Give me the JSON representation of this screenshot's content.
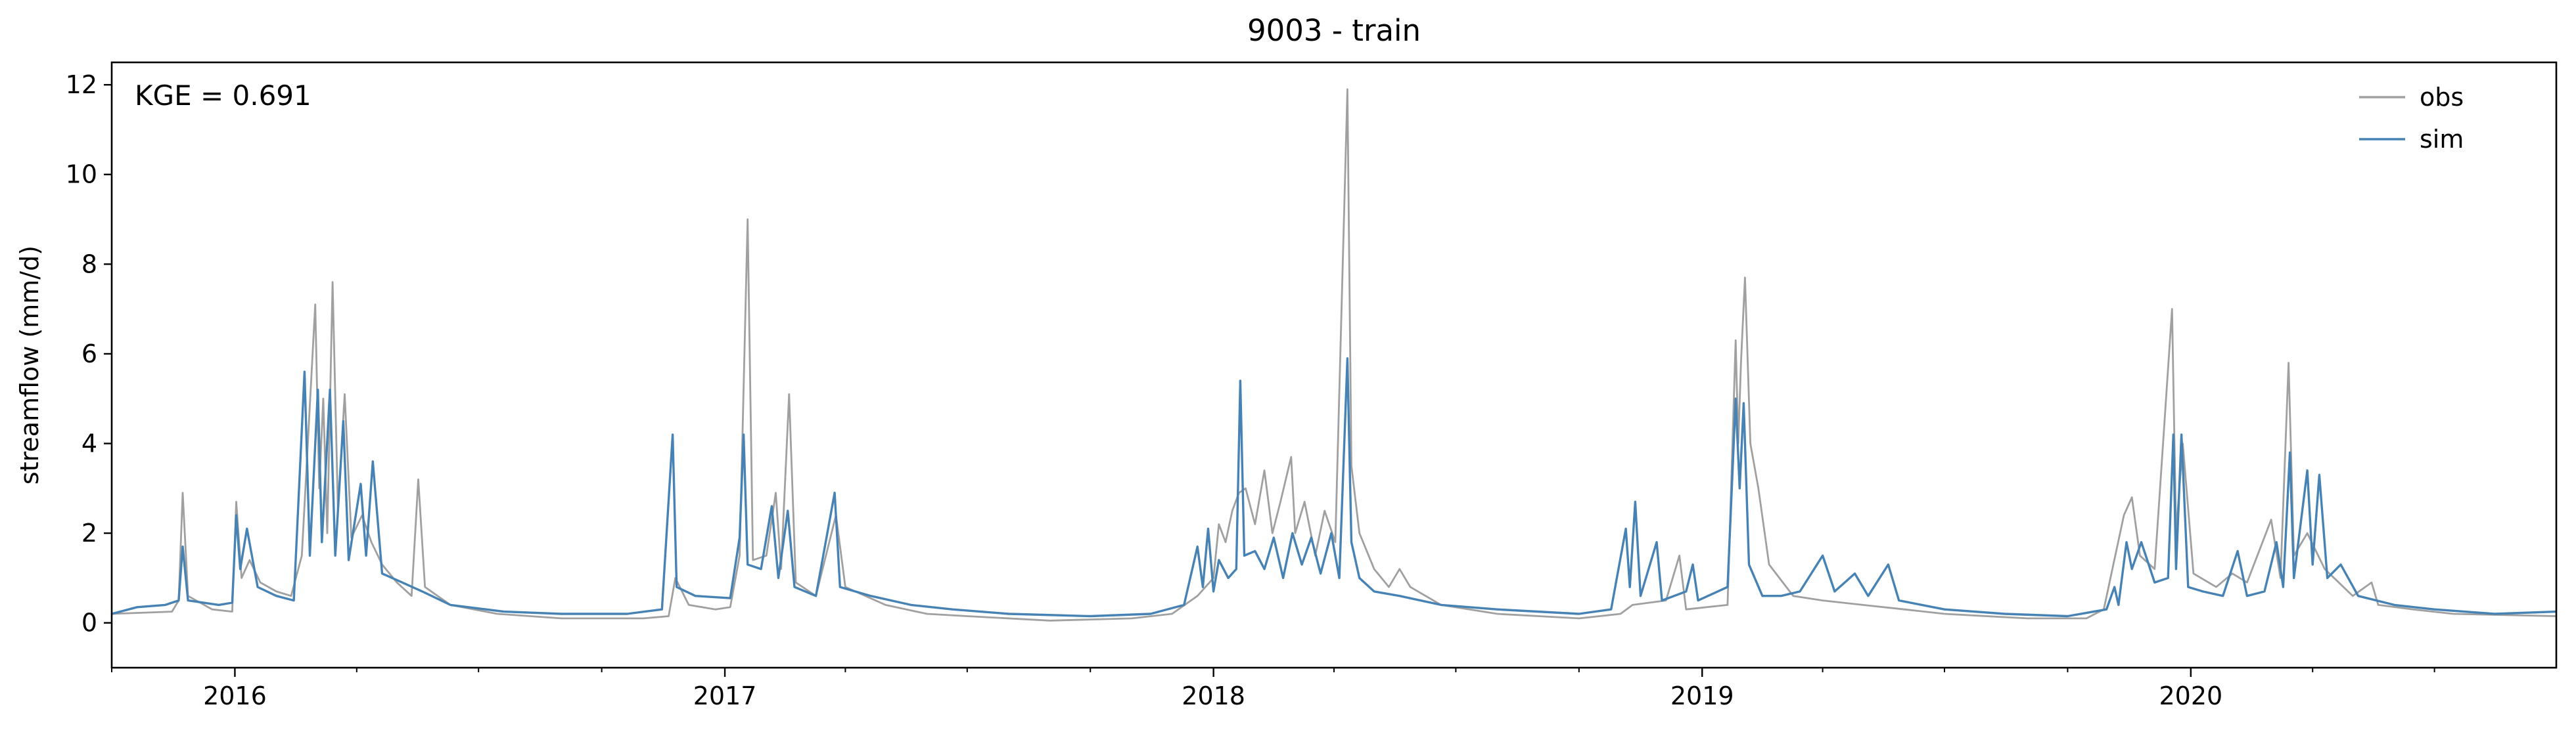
{
  "chart_data": {
    "type": "line",
    "title": "9003 - train",
    "xlabel": "",
    "ylabel": "streamflow (mm/d)",
    "xlim": [
      "2015-10-01",
      "2020-09-30"
    ],
    "ylim": [
      -1,
      12.5
    ],
    "x_ticks": [
      "2016-01-01",
      "2017-01-01",
      "2018-01-01",
      "2019-01-01",
      "2020-01-01"
    ],
    "x_tick_labels": [
      "2016",
      "2017",
      "2018",
      "2019",
      "2020"
    ],
    "y_ticks": [
      0,
      2,
      4,
      6,
      8,
      10,
      12
    ],
    "y_tick_labels": [
      "0",
      "2",
      "4",
      "6",
      "8",
      "10",
      "12"
    ],
    "grid": false,
    "legend_position": "top-right",
    "annotation": "KGE = 0.691",
    "series": [
      {
        "name": "obs",
        "color": "#a0a0a0",
        "points": [
          [
            "2015-10-01",
            0.2
          ],
          [
            "2015-11-15",
            0.25
          ],
          [
            "2015-11-20",
            0.5
          ],
          [
            "2015-11-23",
            2.9
          ],
          [
            "2015-11-27",
            0.6
          ],
          [
            "2015-12-15",
            0.3
          ],
          [
            "2015-12-30",
            0.25
          ],
          [
            "2016-01-02",
            2.7
          ],
          [
            "2016-01-06",
            1.0
          ],
          [
            "2016-01-12",
            1.4
          ],
          [
            "2016-01-20",
            0.9
          ],
          [
            "2016-02-01",
            0.7
          ],
          [
            "2016-02-12",
            0.6
          ],
          [
            "2016-02-20",
            1.5
          ],
          [
            "2016-03-01",
            7.1
          ],
          [
            "2016-03-04",
            3.0
          ],
          [
            "2016-03-07",
            5.0
          ],
          [
            "2016-03-10",
            2.0
          ],
          [
            "2016-03-14",
            7.6
          ],
          [
            "2016-03-18",
            2.5
          ],
          [
            "2016-03-23",
            5.1
          ],
          [
            "2016-03-28",
            1.9
          ],
          [
            "2016-04-05",
            2.4
          ],
          [
            "2016-04-12",
            1.8
          ],
          [
            "2016-04-20",
            1.3
          ],
          [
            "2016-05-01",
            0.9
          ],
          [
            "2016-05-12",
            0.6
          ],
          [
            "2016-05-17",
            3.2
          ],
          [
            "2016-05-22",
            0.8
          ],
          [
            "2016-06-10",
            0.4
          ],
          [
            "2016-07-15",
            0.2
          ],
          [
            "2016-09-01",
            0.1
          ],
          [
            "2016-11-01",
            0.1
          ],
          [
            "2016-11-20",
            0.15
          ],
          [
            "2016-11-25",
            1.0
          ],
          [
            "2016-12-05",
            0.4
          ],
          [
            "2016-12-25",
            0.3
          ],
          [
            "2017-01-05",
            0.35
          ],
          [
            "2017-01-12",
            1.5
          ],
          [
            "2017-01-18",
            9.0
          ],
          [
            "2017-01-22",
            1.4
          ],
          [
            "2017-02-01",
            1.5
          ],
          [
            "2017-02-08",
            2.9
          ],
          [
            "2017-02-12",
            1.2
          ],
          [
            "2017-02-18",
            5.1
          ],
          [
            "2017-02-23",
            0.9
          ],
          [
            "2017-03-10",
            0.6
          ],
          [
            "2017-03-25",
            2.4
          ],
          [
            "2017-04-01",
            0.8
          ],
          [
            "2017-05-01",
            0.4
          ],
          [
            "2017-06-01",
            0.2
          ],
          [
            "2017-07-01",
            0.15
          ],
          [
            "2017-09-01",
            0.05
          ],
          [
            "2017-11-01",
            0.1
          ],
          [
            "2017-12-01",
            0.2
          ],
          [
            "2017-12-20",
            0.6
          ],
          [
            "2018-01-01",
            1.0
          ],
          [
            "2018-01-05",
            2.2
          ],
          [
            "2018-01-10",
            1.8
          ],
          [
            "2018-01-15",
            2.5
          ],
          [
            "2018-01-20",
            2.9
          ],
          [
            "2018-01-25",
            3.0
          ],
          [
            "2018-02-01",
            2.2
          ],
          [
            "2018-02-08",
            3.4
          ],
          [
            "2018-02-14",
            2.0
          ],
          [
            "2018-02-20",
            2.7
          ],
          [
            "2018-02-28",
            3.7
          ],
          [
            "2018-03-03",
            2.0
          ],
          [
            "2018-03-10",
            2.7
          ],
          [
            "2018-03-18",
            1.5
          ],
          [
            "2018-03-25",
            2.5
          ],
          [
            "2018-04-02",
            1.8
          ],
          [
            "2018-04-11",
            11.9
          ],
          [
            "2018-04-14",
            3.5
          ],
          [
            "2018-04-20",
            2.0
          ],
          [
            "2018-05-01",
            1.2
          ],
          [
            "2018-05-12",
            0.8
          ],
          [
            "2018-05-20",
            1.2
          ],
          [
            "2018-05-28",
            0.8
          ],
          [
            "2018-06-20",
            0.4
          ],
          [
            "2018-08-01",
            0.2
          ],
          [
            "2018-10-01",
            0.1
          ],
          [
            "2018-11-01",
            0.2
          ],
          [
            "2018-11-10",
            0.4
          ],
          [
            "2018-12-05",
            0.5
          ],
          [
            "2018-12-15",
            1.5
          ],
          [
            "2018-12-20",
            0.3
          ],
          [
            "2019-01-20",
            0.4
          ],
          [
            "2019-01-26",
            6.3
          ],
          [
            "2019-01-28",
            4.0
          ],
          [
            "2019-01-30",
            5.8
          ],
          [
            "2019-02-02",
            7.7
          ],
          [
            "2019-02-06",
            4.0
          ],
          [
            "2019-02-12",
            3.0
          ],
          [
            "2019-02-20",
            1.3
          ],
          [
            "2019-03-10",
            0.6
          ],
          [
            "2019-04-01",
            0.5
          ],
          [
            "2019-05-01",
            0.4
          ],
          [
            "2019-06-01",
            0.3
          ],
          [
            "2019-07-01",
            0.2
          ],
          [
            "2019-09-01",
            0.1
          ],
          [
            "2019-10-15",
            0.1
          ],
          [
            "2019-10-28",
            0.3
          ],
          [
            "2019-11-12",
            2.4
          ],
          [
            "2019-11-18",
            2.8
          ],
          [
            "2019-11-24",
            1.5
          ],
          [
            "2019-12-05",
            1.2
          ],
          [
            "2019-12-18",
            7.0
          ],
          [
            "2019-12-21",
            2.0
          ],
          [
            "2019-12-26",
            4.0
          ],
          [
            "2020-01-03",
            1.1
          ],
          [
            "2020-01-20",
            0.8
          ],
          [
            "2020-02-01",
            1.1
          ],
          [
            "2020-02-12",
            0.9
          ],
          [
            "2020-03-01",
            2.3
          ],
          [
            "2020-03-08",
            1.0
          ],
          [
            "2020-03-14",
            5.8
          ],
          [
            "2020-03-18",
            1.5
          ],
          [
            "2020-03-28",
            2.0
          ],
          [
            "2020-04-10",
            1.2
          ],
          [
            "2020-05-01",
            0.6
          ],
          [
            "2020-05-15",
            0.9
          ],
          [
            "2020-05-20",
            0.4
          ],
          [
            "2020-06-15",
            0.3
          ],
          [
            "2020-07-15",
            0.2
          ],
          [
            "2020-09-30",
            0.15
          ]
        ]
      },
      {
        "name": "sim",
        "color": "#4682b4",
        "points": [
          [
            "2015-10-01",
            0.2
          ],
          [
            "2015-10-20",
            0.35
          ],
          [
            "2015-11-10",
            0.4
          ],
          [
            "2015-11-20",
            0.5
          ],
          [
            "2015-11-23",
            1.7
          ],
          [
            "2015-11-27",
            0.5
          ],
          [
            "2015-12-20",
            0.4
          ],
          [
            "2015-12-30",
            0.45
          ],
          [
            "2016-01-02",
            2.4
          ],
          [
            "2016-01-05",
            1.2
          ],
          [
            "2016-01-10",
            2.1
          ],
          [
            "2016-01-18",
            0.8
          ],
          [
            "2016-02-01",
            0.6
          ],
          [
            "2016-02-14",
            0.5
          ],
          [
            "2016-02-22",
            5.6
          ],
          [
            "2016-02-26",
            1.5
          ],
          [
            "2016-03-03",
            5.2
          ],
          [
            "2016-03-06",
            1.8
          ],
          [
            "2016-03-12",
            5.2
          ],
          [
            "2016-03-16",
            1.5
          ],
          [
            "2016-03-22",
            4.5
          ],
          [
            "2016-03-26",
            1.4
          ],
          [
            "2016-04-04",
            3.1
          ],
          [
            "2016-04-08",
            1.5
          ],
          [
            "2016-04-13",
            3.6
          ],
          [
            "2016-04-20",
            1.1
          ],
          [
            "2016-05-05",
            0.9
          ],
          [
            "2016-05-20",
            0.7
          ],
          [
            "2016-06-10",
            0.4
          ],
          [
            "2016-07-20",
            0.25
          ],
          [
            "2016-09-01",
            0.2
          ],
          [
            "2016-10-20",
            0.2
          ],
          [
            "2016-11-15",
            0.3
          ],
          [
            "2016-11-23",
            4.2
          ],
          [
            "2016-11-26",
            0.8
          ],
          [
            "2016-12-10",
            0.6
          ],
          [
            "2017-01-05",
            0.55
          ],
          [
            "2017-01-12",
            1.9
          ],
          [
            "2017-01-15",
            4.2
          ],
          [
            "2017-01-18",
            1.3
          ],
          [
            "2017-01-28",
            1.2
          ],
          [
            "2017-02-05",
            2.6
          ],
          [
            "2017-02-10",
            1.0
          ],
          [
            "2017-02-17",
            2.5
          ],
          [
            "2017-02-22",
            0.8
          ],
          [
            "2017-03-10",
            0.6
          ],
          [
            "2017-03-24",
            2.9
          ],
          [
            "2017-03-28",
            0.8
          ],
          [
            "2017-04-20",
            0.6
          ],
          [
            "2017-05-20",
            0.4
          ],
          [
            "2017-06-20",
            0.3
          ],
          [
            "2017-08-01",
            0.2
          ],
          [
            "2017-10-01",
            0.15
          ],
          [
            "2017-11-15",
            0.2
          ],
          [
            "2017-12-10",
            0.4
          ],
          [
            "2017-12-20",
            1.7
          ],
          [
            "2017-12-24",
            0.8
          ],
          [
            "2017-12-28",
            2.1
          ],
          [
            "2018-01-01",
            0.7
          ],
          [
            "2018-01-05",
            1.4
          ],
          [
            "2018-01-12",
            1.0
          ],
          [
            "2018-01-18",
            1.2
          ],
          [
            "2018-01-21",
            5.4
          ],
          [
            "2018-01-24",
            1.5
          ],
          [
            "2018-02-01",
            1.6
          ],
          [
            "2018-02-08",
            1.2
          ],
          [
            "2018-02-15",
            1.9
          ],
          [
            "2018-02-22",
            1.0
          ],
          [
            "2018-03-01",
            2.0
          ],
          [
            "2018-03-08",
            1.3
          ],
          [
            "2018-03-15",
            1.9
          ],
          [
            "2018-03-22",
            1.1
          ],
          [
            "2018-03-30",
            2.0
          ],
          [
            "2018-04-05",
            1.0
          ],
          [
            "2018-04-11",
            5.9
          ],
          [
            "2018-04-14",
            1.8
          ],
          [
            "2018-04-20",
            1.0
          ],
          [
            "2018-05-01",
            0.7
          ],
          [
            "2018-05-20",
            0.6
          ],
          [
            "2018-06-20",
            0.4
          ],
          [
            "2018-08-01",
            0.3
          ],
          [
            "2018-10-01",
            0.2
          ],
          [
            "2018-10-25",
            0.3
          ],
          [
            "2018-11-05",
            2.1
          ],
          [
            "2018-11-08",
            0.8
          ],
          [
            "2018-11-12",
            2.7
          ],
          [
            "2018-11-16",
            0.6
          ],
          [
            "2018-11-28",
            1.8
          ],
          [
            "2018-12-02",
            0.5
          ],
          [
            "2018-12-20",
            0.7
          ],
          [
            "2018-12-25",
            1.3
          ],
          [
            "2018-12-29",
            0.5
          ],
          [
            "2019-01-20",
            0.8
          ],
          [
            "2019-01-26",
            5.0
          ],
          [
            "2019-01-29",
            3.0
          ],
          [
            "2019-02-01",
            4.9
          ],
          [
            "2019-02-05",
            1.3
          ],
          [
            "2019-02-15",
            0.6
          ],
          [
            "2019-03-01",
            0.6
          ],
          [
            "2019-03-15",
            0.7
          ],
          [
            "2019-04-01",
            1.5
          ],
          [
            "2019-04-10",
            0.7
          ],
          [
            "2019-04-25",
            1.1
          ],
          [
            "2019-05-05",
            0.6
          ],
          [
            "2019-05-20",
            1.3
          ],
          [
            "2019-05-28",
            0.5
          ],
          [
            "2019-07-01",
            0.3
          ],
          [
            "2019-08-15",
            0.2
          ],
          [
            "2019-10-01",
            0.15
          ],
          [
            "2019-10-30",
            0.3
          ],
          [
            "2019-11-05",
            0.8
          ],
          [
            "2019-11-08",
            0.4
          ],
          [
            "2019-11-14",
            1.8
          ],
          [
            "2019-11-18",
            1.2
          ],
          [
            "2019-11-25",
            1.8
          ],
          [
            "2019-12-05",
            0.9
          ],
          [
            "2019-12-15",
            1.0
          ],
          [
            "2019-12-19",
            4.2
          ],
          [
            "2019-12-21",
            1.2
          ],
          [
            "2019-12-25",
            4.2
          ],
          [
            "2019-12-30",
            0.8
          ],
          [
            "2020-01-10",
            0.7
          ],
          [
            "2020-01-25",
            0.6
          ],
          [
            "2020-02-05",
            1.6
          ],
          [
            "2020-02-12",
            0.6
          ],
          [
            "2020-02-25",
            0.7
          ],
          [
            "2020-03-05",
            1.8
          ],
          [
            "2020-03-10",
            0.8
          ],
          [
            "2020-03-15",
            3.8
          ],
          [
            "2020-03-18",
            1.0
          ],
          [
            "2020-03-28",
            3.4
          ],
          [
            "2020-04-01",
            1.3
          ],
          [
            "2020-04-06",
            3.3
          ],
          [
            "2020-04-12",
            1.0
          ],
          [
            "2020-04-22",
            1.3
          ],
          [
            "2020-05-05",
            0.6
          ],
          [
            "2020-06-01",
            0.4
          ],
          [
            "2020-07-01",
            0.3
          ],
          [
            "2020-08-15",
            0.2
          ],
          [
            "2020-09-30",
            0.25
          ]
        ]
      }
    ]
  }
}
